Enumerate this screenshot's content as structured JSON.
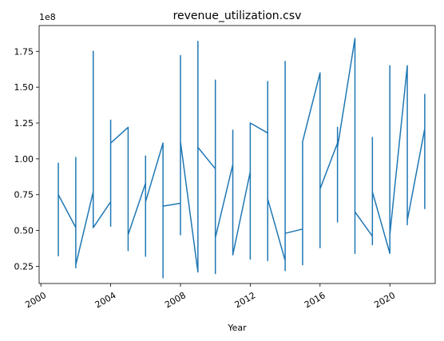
{
  "chart_data": {
    "type": "line",
    "title": "revenue_utilization.csv",
    "xlabel": "Year",
    "ylabel": "",
    "y_offset_label": "1e8",
    "y_scale": 100000000,
    "xlim": [
      1999.9,
      2022.6
    ],
    "ylim": [
      0.13,
      1.93
    ],
    "x_ticks": [
      2000,
      2004,
      2008,
      2012,
      2016,
      2020
    ],
    "x_tick_labels": [
      "2000",
      "2004",
      "2008",
      "2012",
      "2016",
      "2020"
    ],
    "y_ticks": [
      0.25,
      0.5,
      0.75,
      1.0,
      1.25,
      1.5,
      1.75
    ],
    "y_tick_labels": [
      "0.25",
      "0.50",
      "0.75",
      "1.00",
      "1.25",
      "1.50",
      "1.75"
    ],
    "grid": false,
    "color": "#1f77b4",
    "series": [
      {
        "x": [
          2001,
          2001,
          2001,
          2001,
          2002,
          2002,
          2002,
          2002,
          2002,
          2002,
          2003,
          2003,
          2003,
          2004,
          2004,
          2004,
          2004,
          2004,
          2005,
          2005,
          2005,
          2006,
          2006,
          2006,
          2006,
          2007,
          2007,
          2007,
          2008,
          2008,
          2008,
          2008,
          2009,
          2009,
          2009,
          2010,
          2010,
          2010,
          2010,
          2011,
          2011,
          2011,
          2012,
          2012,
          2012,
          2013,
          2013,
          2013,
          2013,
          2014,
          2014,
          2014,
          2014,
          2015,
          2015,
          2015,
          2016,
          2016,
          2016,
          2017,
          2017,
          2017,
          2017,
          2018,
          2018,
          2018,
          2019,
          2019,
          2019,
          2019,
          2020,
          2020,
          2020,
          2021,
          2021,
          2021,
          2022,
          2022,
          2022
        ],
        "y": [
          0.32,
          0.97,
          0.75,
          0.75,
          0.52,
          1.01,
          0.25,
          1.01,
          0.24,
          0.26,
          0.77,
          1.75,
          0.52,
          0.7,
          1.27,
          0.53,
          1.27,
          1.11,
          1.22,
          0.36,
          0.47,
          0.83,
          0.32,
          1.02,
          0.7,
          1.11,
          0.17,
          0.67,
          0.69,
          1.72,
          0.47,
          1.12,
          0.21,
          1.82,
          1.08,
          0.93,
          1.55,
          0.2,
          0.45,
          0.96,
          1.2,
          0.33,
          0.91,
          0.3,
          1.25,
          1.18,
          0.29,
          1.54,
          0.72,
          0.29,
          0.22,
          1.68,
          0.48,
          0.51,
          0.26,
          1.12,
          1.6,
          0.38,
          0.79,
          1.11,
          0.56,
          1.22,
          1.08,
          1.84,
          0.34,
          0.63,
          0.46,
          1.15,
          0.4,
          0.77,
          0.34,
          1.65,
          0.47,
          1.65,
          0.54,
          0.57,
          1.21,
          1.45,
          0.65
        ]
      }
    ]
  }
}
